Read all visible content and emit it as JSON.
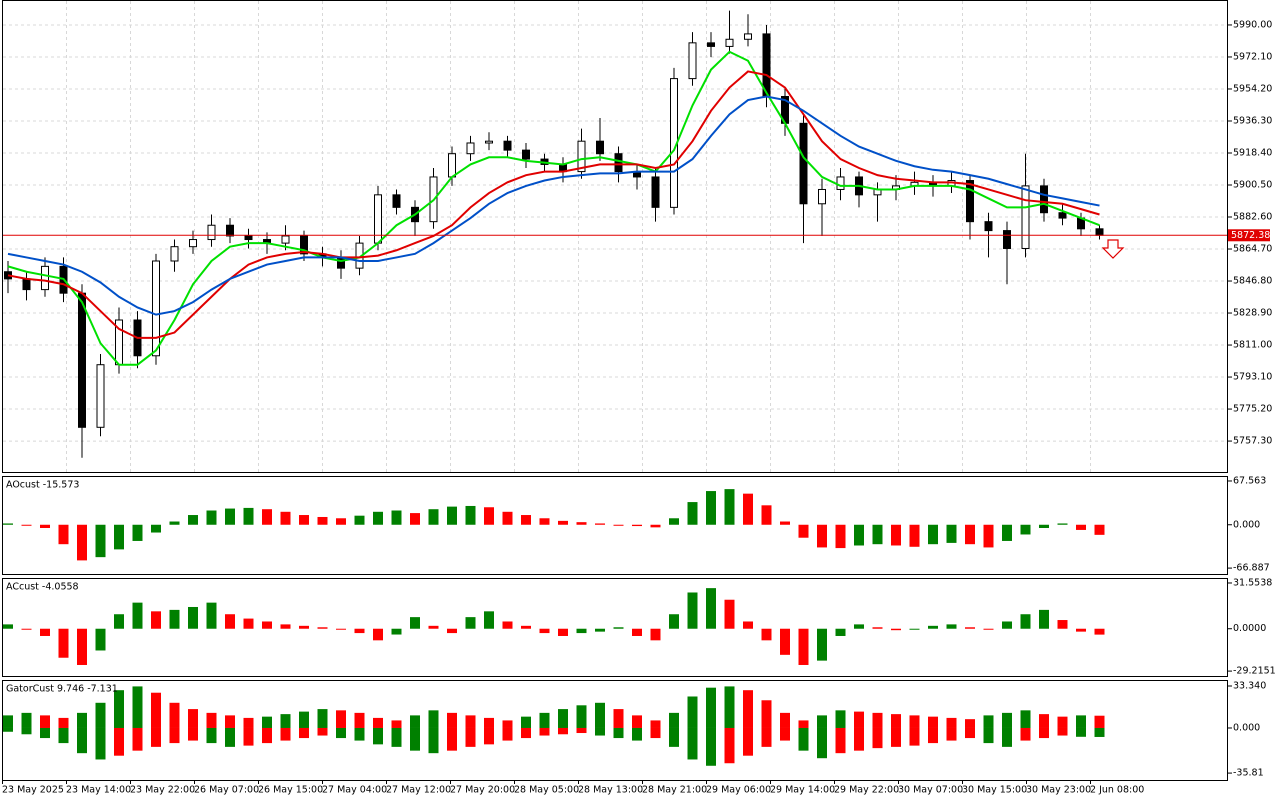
{
  "chart_data": [
    {
      "type": "candlestick",
      "open": [
        5852,
        5848,
        5842,
        5855,
        5840,
        5765,
        5800,
        5825,
        5805,
        5858,
        5866,
        5870,
        5878,
        5872,
        5870,
        5868,
        5872,
        5862,
        5860,
        5854,
        5868,
        5895,
        5888,
        5880,
        5905,
        5918,
        5924,
        5925,
        5920,
        5915,
        5912,
        5908,
        5925,
        5918,
        5908,
        5905,
        5888,
        5960,
        5980,
        5978,
        5982,
        5985,
        5950,
        5935,
        5890,
        5898,
        5905,
        5895,
        5898,
        5900,
        5902,
        5900,
        5903,
        5880,
        5875,
        5865,
        5900,
        5885,
        5882,
        5876
      ],
      "high": [
        5858,
        5852,
        5860,
        5860,
        5845,
        5806,
        5832,
        5830,
        5862,
        5870,
        5875,
        5884,
        5882,
        5876,
        5874,
        5878,
        5875,
        5866,
        5864,
        5872,
        5900,
        5898,
        5892,
        5910,
        5922,
        5928,
        5930,
        5928,
        5924,
        5918,
        5916,
        5932,
        5938,
        5922,
        5912,
        5910,
        5966,
        5986,
        5986,
        5998,
        5996,
        5990,
        5955,
        5940,
        5904,
        5910,
        5908,
        5902,
        5906,
        5908,
        5906,
        5908,
        5906,
        5885,
        5880,
        5918,
        5904,
        5890,
        5885,
        5878
      ],
      "low": [
        5840,
        5836,
        5838,
        5835,
        5748,
        5760,
        5795,
        5798,
        5800,
        5852,
        5862,
        5866,
        5868,
        5865,
        5862,
        5864,
        5858,
        5855,
        5848,
        5850,
        5864,
        5884,
        5872,
        5876,
        5900,
        5914,
        5920,
        5916,
        5910,
        5908,
        5902,
        5904,
        5914,
        5902,
        5898,
        5880,
        5884,
        5956,
        5972,
        5974,
        5978,
        5944,
        5928,
        5868,
        5872,
        5892,
        5888,
        5880,
        5892,
        5895,
        5894,
        5896,
        5870,
        5860,
        5845,
        5860,
        5880,
        5878,
        5872,
        5870
      ],
      "close": [
        5848,
        5842,
        5855,
        5840,
        5765,
        5800,
        5825,
        5805,
        5858,
        5866,
        5870,
        5878,
        5872,
        5870,
        5868,
        5872,
        5862,
        5860,
        5854,
        5868,
        5895,
        5888,
        5880,
        5905,
        5918,
        5924,
        5925,
        5920,
        5915,
        5912,
        5908,
        5925,
        5918,
        5908,
        5905,
        5888,
        5960,
        5980,
        5978,
        5982,
        5985,
        5950,
        5935,
        5890,
        5898,
        5905,
        5895,
        5898,
        5900,
        5902,
        5900,
        5903,
        5880,
        5875,
        5865,
        5900,
        5885,
        5882,
        5876,
        5872.38
      ],
      "up_color": "#ffffff",
      "down_color": "#000000",
      "lines": [
        {
          "color": "#00e000",
          "values": [
            5855,
            5852,
            5850,
            5848,
            5835,
            5812,
            5800,
            5800,
            5808,
            5825,
            5845,
            5858,
            5866,
            5868,
            5868,
            5866,
            5864,
            5860,
            5858,
            5860,
            5868,
            5878,
            5884,
            5892,
            5905,
            5912,
            5916,
            5916,
            5914,
            5913,
            5912,
            5915,
            5916,
            5914,
            5912,
            5908,
            5920,
            5945,
            5965,
            5975,
            5970,
            5952,
            5935,
            5916,
            5905,
            5900,
            5900,
            5898,
            5898,
            5900,
            5900,
            5900,
            5898,
            5893,
            5888,
            5888,
            5890,
            5886,
            5882,
            5878
          ]
        },
        {
          "color": "#e00000",
          "values": [
            5850,
            5848,
            5847,
            5845,
            5840,
            5830,
            5820,
            5815,
            5815,
            5818,
            5828,
            5838,
            5848,
            5856,
            5860,
            5862,
            5863,
            5862,
            5860,
            5860,
            5861,
            5864,
            5868,
            5872,
            5878,
            5888,
            5896,
            5902,
            5906,
            5908,
            5908,
            5910,
            5912,
            5912,
            5912,
            5910,
            5912,
            5925,
            5942,
            5955,
            5964,
            5962,
            5955,
            5940,
            5925,
            5915,
            5910,
            5906,
            5904,
            5903,
            5902,
            5902,
            5901,
            5898,
            5895,
            5892,
            5891,
            5890,
            5887,
            5884
          ]
        },
        {
          "color": "#0050c8",
          "values": [
            5862,
            5860,
            5858,
            5856,
            5852,
            5846,
            5838,
            5832,
            5828,
            5830,
            5835,
            5842,
            5848,
            5852,
            5856,
            5858,
            5860,
            5860,
            5860,
            5858,
            5858,
            5860,
            5862,
            5868,
            5875,
            5882,
            5890,
            5896,
            5900,
            5903,
            5905,
            5906,
            5907,
            5907,
            5908,
            5908,
            5908,
            5915,
            5928,
            5940,
            5948,
            5950,
            5948,
            5942,
            5935,
            5928,
            5922,
            5918,
            5914,
            5911,
            5909,
            5908,
            5906,
            5904,
            5901,
            5898,
            5895,
            5893,
            5891,
            5889
          ]
        }
      ],
      "current_price": 5872.38,
      "current_price_color": "#e00000",
      "ylim": [
        5740,
        6003.4
      ],
      "yticks": [
        {
          "value": 5990,
          "label": "5990.00"
        },
        {
          "value": 5972.1,
          "label": "5972.10"
        },
        {
          "value": 5954.2,
          "label": "5954.20"
        },
        {
          "value": 5936.3,
          "label": "5936.30"
        },
        {
          "value": 5918.4,
          "label": "5918.40"
        },
        {
          "value": 5900.5,
          "label": "5900.50"
        },
        {
          "value": 5882.6,
          "label": "5882.60"
        },
        {
          "value": 5864.7,
          "label": "5864.70"
        },
        {
          "value": 5846.8,
          "label": "5846.80"
        },
        {
          "value": 5828.9,
          "label": "5828.90"
        },
        {
          "value": 5811,
          "label": "5811.00"
        },
        {
          "value": 5793.1,
          "label": "5793.10"
        },
        {
          "value": 5775.2,
          "label": "5775.20"
        },
        {
          "value": 5757.3,
          "label": "5757.30"
        }
      ],
      "grid": true,
      "x_labels": [
        "23 May 2025",
        "23 May 14:00",
        "23 May 22:00",
        "26 May 07:00",
        "26 May 15:00",
        "27 May 04:00",
        "27 May 12:00",
        "27 May 20:00",
        "28 May 05:00",
        "28 May 13:00",
        "28 May 21:00",
        "29 May 06:00",
        "29 May 14:00",
        "29 May 22:00",
        "30 May 07:00",
        "30 May 15:00",
        "30 May 23:00",
        "2 Jun 08:00"
      ]
    },
    {
      "type": "histogram",
      "label": "AOcust -15.573",
      "up_color": "#008000",
      "down_color": "#ff0000",
      "values": [
        2,
        0,
        -5,
        -30,
        -55,
        -50,
        -38,
        -25,
        -12,
        5,
        15,
        22,
        25,
        26,
        24,
        20,
        15,
        12,
        10,
        14,
        20,
        22,
        18,
        24,
        28,
        29,
        27,
        20,
        15,
        10,
        6,
        4,
        2,
        0,
        -2,
        -4,
        10,
        35,
        52,
        55,
        48,
        30,
        5,
        -20,
        -35,
        -36,
        -32,
        -30,
        -32,
        -34,
        -30,
        -28,
        -30,
        -35,
        -25,
        -15,
        -5,
        2,
        -8,
        -15.573
      ],
      "ylim": [
        -76,
        73.7
      ],
      "yticks": [
        67.563,
        {
          "value": 0,
          "label": "0.000"
        },
        -66.887
      ]
    },
    {
      "type": "histogram",
      "label": "ACcust -4.0558",
      "up_color": "#008000",
      "down_color": "#ff0000",
      "values": [
        3,
        0,
        -5,
        -20,
        -25,
        -15,
        10,
        18,
        12,
        13,
        15,
        18,
        10,
        7,
        5,
        3,
        2,
        1,
        0,
        -3,
        -8,
        -4,
        8,
        2,
        -3,
        8,
        12,
        5,
        2,
        -3,
        -5,
        -3,
        -2,
        1,
        -5,
        -8,
        10,
        25,
        28,
        20,
        5,
        -8,
        -18,
        -25,
        -22,
        -5,
        3,
        1,
        -1,
        0,
        2,
        3,
        1,
        0,
        5,
        10,
        13,
        6,
        -2,
        -4.0558
      ],
      "ylim": [
        -32.6,
        34.3
      ],
      "yticks": [
        31.5538,
        {
          "value": 0,
          "label": "0.0000"
        },
        -29.2151
      ]
    },
    {
      "type": "gator",
      "label": "GatorCust 9.746 -7.131",
      "up_color": "#008000",
      "down_color": "#ff0000",
      "upper": [
        10,
        12,
        10,
        8,
        12,
        20,
        30,
        33,
        28,
        20,
        15,
        12,
        10,
        8,
        9,
        11,
        13,
        15,
        14,
        12,
        8,
        6,
        10,
        14,
        12,
        10,
        8,
        6,
        9,
        12,
        15,
        18,
        20,
        15,
        10,
        6,
        12,
        25,
        32,
        33,
        30,
        22,
        12,
        6,
        10,
        14,
        13,
        12,
        11,
        10,
        9,
        8,
        7,
        10,
        12,
        14,
        11,
        9,
        10,
        9.746
      ],
      "lower": [
        -3,
        -5,
        -8,
        -12,
        -20,
        -25,
        -22,
        -18,
        -15,
        -12,
        -10,
        -12,
        -15,
        -14,
        -12,
        -10,
        -8,
        -6,
        -8,
        -10,
        -13,
        -15,
        -18,
        -20,
        -18,
        -15,
        -13,
        -10,
        -8,
        -6,
        -5,
        -4,
        -6,
        -8,
        -10,
        -8,
        -15,
        -25,
        -30,
        -28,
        -22,
        -15,
        -10,
        -18,
        -24,
        -20,
        -18,
        -16,
        -15,
        -14,
        -12,
        -10,
        -8,
        -12,
        -15,
        -10,
        -8,
        -6,
        -7,
        -7.131
      ],
      "ylim": [
        -41.3,
        37.3
      ],
      "yticks": [
        {
          "value": 33.34,
          "label": "33.340"
        },
        {
          "value": 0,
          "label": "0.000"
        },
        -35.81
      ]
    }
  ]
}
